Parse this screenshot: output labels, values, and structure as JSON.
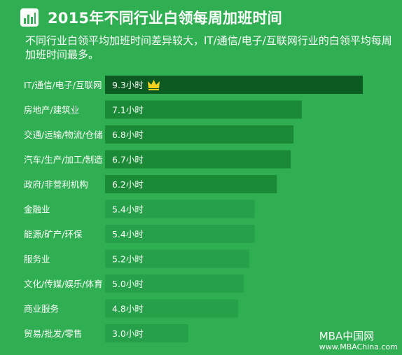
{
  "header": {
    "title": "2015年不同行业白领每周加班时间",
    "subtitle": "不同行业白领平均加班时间差异较大，IT/通信/电子/互联网行业的白领平均每周加班时间最多。",
    "icon": "bar-chart-icon"
  },
  "colors": {
    "background": "#2fae52",
    "top_bar": "#0b5a22",
    "bar_dark": "#1a8a37",
    "bar_light": "#26a049",
    "crown": "#f7d21c"
  },
  "chart_data": {
    "type": "bar",
    "orientation": "horizontal",
    "categories": [
      "IT/通信/电子/互联网",
      "房地产/建筑业",
      "交通/运输/物流/仓储",
      "汽车/生产/加工/制造",
      "政府/非营利机构",
      "金融业",
      "能源/矿产/环保",
      "服务业",
      "文化/传媒/娱乐/体育",
      "商业服务",
      "贸易/批发/零售"
    ],
    "values": [
      9.3,
      7.1,
      6.8,
      6.7,
      6.2,
      5.4,
      5.4,
      5.2,
      5.0,
      4.8,
      3.0
    ],
    "value_labels": [
      "9.3小时",
      "7.1小时",
      "6.8小时",
      "6.7小时",
      "6.2小时",
      "5.4小时",
      "5.4小时",
      "5.2小时",
      "5.0小时",
      "4.8小时",
      "3.0小时"
    ],
    "unit": "小时",
    "xlim": [
      0,
      9.3
    ],
    "highlight": "crown on top value",
    "grid": false,
    "legend": "none"
  },
  "watermark": {
    "line1": "MBA中国网",
    "line2": "www.MBAChina.com"
  }
}
